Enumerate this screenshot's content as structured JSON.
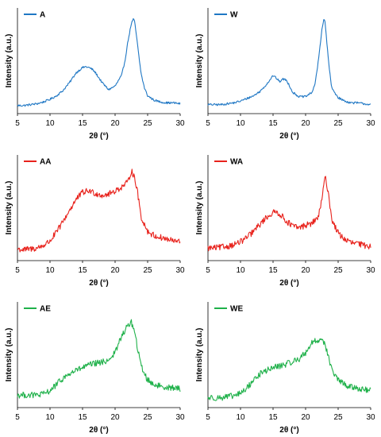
{
  "chart_data": [
    {
      "type": "line",
      "legend": "A",
      "color": "#1F77C4",
      "xlabel": "2θ (°)",
      "ylabel": "Intensity (a.u.)",
      "xlim": [
        5,
        30
      ],
      "xticks": [
        "5",
        "10",
        "15",
        "20",
        "25",
        "30"
      ],
      "y_ticks_shown": false,
      "legend_position": "top-left",
      "grid": false,
      "x": [
        5,
        6,
        7,
        8,
        9,
        10,
        11,
        12,
        13,
        14,
        15,
        15.5,
        16,
        16.5,
        17,
        18,
        19,
        20,
        21,
        21.5,
        22,
        22.5,
        22.8,
        23,
        23.3,
        23.7,
        24,
        24.5,
        25,
        26,
        27,
        28,
        29,
        30
      ],
      "y": [
        0.02,
        0.02,
        0.03,
        0.04,
        0.06,
        0.09,
        0.13,
        0.19,
        0.28,
        0.39,
        0.45,
        0.46,
        0.45,
        0.43,
        0.39,
        0.28,
        0.2,
        0.24,
        0.36,
        0.52,
        0.76,
        0.95,
        1.0,
        0.97,
        0.8,
        0.55,
        0.38,
        0.22,
        0.13,
        0.08,
        0.06,
        0.05,
        0.05,
        0.04
      ]
    },
    {
      "type": "line",
      "legend": "W",
      "color": "#1F77C4",
      "xlabel": "2θ (°)",
      "ylabel": "Intensity (a.u.)",
      "xlim": [
        5,
        30
      ],
      "xticks": [
        "5",
        "10",
        "15",
        "20",
        "25",
        "30"
      ],
      "y_ticks_shown": false,
      "legend_position": "top-left",
      "grid": false,
      "x": [
        5,
        6,
        7,
        8,
        9,
        10,
        11,
        12,
        13,
        14,
        14.5,
        15,
        15.5,
        16,
        16.5,
        17,
        17.5,
        18,
        19,
        20,
        21,
        21.5,
        22,
        22.5,
        22.8,
        23,
        23.3,
        23.7,
        24,
        25,
        26,
        27,
        28,
        29,
        30
      ],
      "y": [
        0.03,
        0.03,
        0.03,
        0.04,
        0.05,
        0.07,
        0.1,
        0.13,
        0.18,
        0.26,
        0.31,
        0.36,
        0.33,
        0.29,
        0.32,
        0.31,
        0.25,
        0.17,
        0.12,
        0.12,
        0.17,
        0.28,
        0.55,
        0.88,
        1.0,
        0.96,
        0.7,
        0.4,
        0.22,
        0.11,
        0.07,
        0.05,
        0.05,
        0.04,
        0.03
      ]
    },
    {
      "type": "line",
      "legend": "AA",
      "color": "#E8221C",
      "xlabel": "2θ (°)",
      "ylabel": "Intensity (a.u.)",
      "xlim": [
        5,
        30
      ],
      "xticks": [
        "5",
        "10",
        "15",
        "20",
        "25",
        "30"
      ],
      "y_ticks_shown": false,
      "legend_position": "top-left",
      "grid": false,
      "x": [
        5,
        6,
        7,
        8,
        9,
        10,
        11,
        12,
        13,
        14,
        15,
        16,
        17,
        18,
        19,
        20,
        21,
        22,
        22.5,
        23,
        23.5,
        24,
        25,
        26,
        27,
        28,
        29,
        30
      ],
      "y": [
        0.06,
        0.05,
        0.06,
        0.07,
        0.1,
        0.15,
        0.25,
        0.37,
        0.5,
        0.62,
        0.7,
        0.72,
        0.69,
        0.67,
        0.68,
        0.72,
        0.76,
        0.82,
        0.95,
        0.87,
        0.68,
        0.42,
        0.26,
        0.21,
        0.19,
        0.17,
        0.15,
        0.14
      ]
    },
    {
      "type": "line",
      "legend": "WA",
      "color": "#E8221C",
      "xlabel": "2θ (°)",
      "ylabel": "Intensity (a.u.)",
      "xlim": [
        5,
        30
      ],
      "xticks": [
        "5",
        "10",
        "15",
        "20",
        "25",
        "30"
      ],
      "y_ticks_shown": false,
      "legend_position": "top-left",
      "grid": false,
      "x": [
        5,
        6,
        7,
        8,
        9,
        10,
        11,
        12,
        13,
        14,
        15,
        15.5,
        16,
        17,
        18,
        19,
        20,
        21,
        22,
        22.5,
        23,
        23.5,
        24,
        25,
        26,
        27,
        28,
        29,
        30
      ],
      "y": [
        0.07,
        0.07,
        0.08,
        0.09,
        0.11,
        0.14,
        0.19,
        0.26,
        0.34,
        0.42,
        0.47,
        0.48,
        0.46,
        0.38,
        0.32,
        0.3,
        0.33,
        0.35,
        0.43,
        0.62,
        0.88,
        0.7,
        0.4,
        0.24,
        0.17,
        0.13,
        0.12,
        0.1,
        0.09
      ]
    },
    {
      "type": "line",
      "legend": "AE",
      "color": "#1FB14A",
      "xlabel": "2θ (°)",
      "ylabel": "Intensity (a.u.)",
      "xlim": [
        5,
        30
      ],
      "xticks": [
        "5",
        "10",
        "15",
        "20",
        "25",
        "30"
      ],
      "y_ticks_shown": false,
      "legend_position": "top-left",
      "grid": false,
      "x": [
        5,
        6,
        7,
        8,
        9,
        10,
        11,
        12,
        13,
        14,
        15,
        16,
        17,
        18,
        19,
        20,
        21,
        22,
        22.5,
        23,
        23.5,
        24,
        25,
        26,
        27,
        28,
        29,
        30
      ],
      "y": [
        0.07,
        0.07,
        0.07,
        0.07,
        0.08,
        0.12,
        0.19,
        0.26,
        0.31,
        0.35,
        0.38,
        0.41,
        0.43,
        0.44,
        0.47,
        0.55,
        0.74,
        0.86,
        0.9,
        0.78,
        0.58,
        0.4,
        0.24,
        0.19,
        0.17,
        0.16,
        0.15,
        0.14
      ]
    },
    {
      "type": "line",
      "legend": "WE",
      "color": "#1FB14A",
      "xlabel": "2θ (°)",
      "ylabel": "Intensity (a.u.)",
      "xlim": [
        5,
        30
      ],
      "xticks": [
        "5",
        "10",
        "15",
        "20",
        "25",
        "30"
      ],
      "y_ticks_shown": false,
      "legend_position": "top-left",
      "grid": false,
      "x": [
        5,
        6,
        7,
        8,
        9,
        10,
        11,
        12,
        13,
        14,
        15,
        16,
        17,
        18,
        19,
        20,
        21,
        22,
        22.5,
        23,
        23.5,
        24,
        25,
        26,
        27,
        28,
        29,
        30
      ],
      "y": [
        0.04,
        0.04,
        0.04,
        0.05,
        0.06,
        0.09,
        0.15,
        0.24,
        0.31,
        0.35,
        0.38,
        0.4,
        0.42,
        0.45,
        0.48,
        0.55,
        0.67,
        0.69,
        0.71,
        0.65,
        0.5,
        0.36,
        0.24,
        0.19,
        0.16,
        0.15,
        0.13,
        0.12
      ]
    }
  ]
}
